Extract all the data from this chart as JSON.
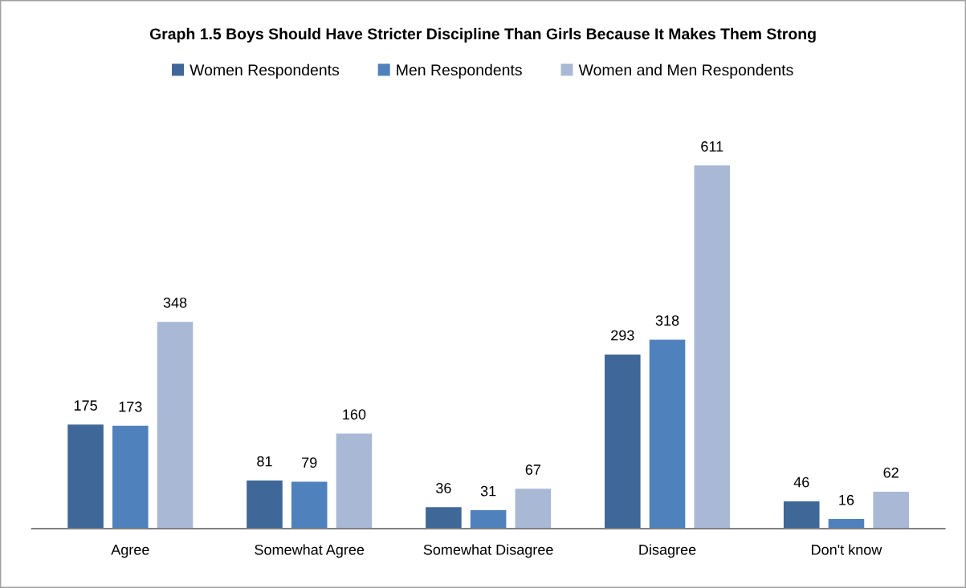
{
  "chart_data": {
    "type": "bar",
    "title": "Graph 1.5 Boys Should Have Stricter Discipline Than Girls Because It Makes Them Strong",
    "categories": [
      "Agree",
      "Somewhat Agree",
      "Somewhat Disagree",
      "Disagree",
      "Don't know"
    ],
    "series": [
      {
        "name": "Women Respondents",
        "color": "#3f6797",
        "values": [
          175,
          81,
          36,
          293,
          46
        ]
      },
      {
        "name": "Men Respondents",
        "color": "#4f81bd",
        "values": [
          173,
          79,
          31,
          318,
          16
        ]
      },
      {
        "name": "Women and Men Respondents",
        "color": "#a9b9d5",
        "values": [
          348,
          160,
          67,
          611,
          62
        ]
      }
    ],
    "tick_labels": "x",
    "data_labels": true,
    "legend": "top",
    "grid": false
  }
}
